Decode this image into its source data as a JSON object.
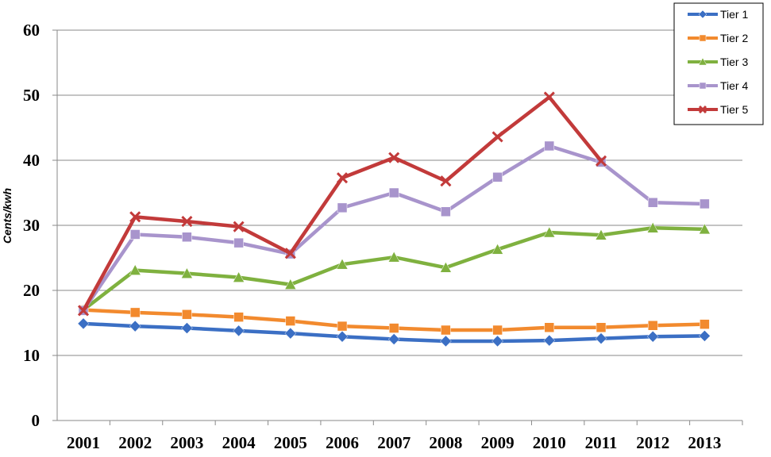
{
  "chart_data": {
    "type": "line",
    "title": "",
    "xlabel": "",
    "ylabel": "Cents/kwh",
    "ylim": [
      0,
      60
    ],
    "yticks": [
      0,
      10,
      20,
      30,
      40,
      50,
      60
    ],
    "grid": true,
    "legend_position": "top-right",
    "categories": [
      "2001",
      "2002",
      "2003",
      "2004",
      "2005",
      "2006",
      "2007",
      "2008",
      "2009",
      "2010",
      "2011",
      "2012",
      "2013"
    ],
    "series": [
      {
        "name": "Tier 1",
        "color": "#3b6fc4",
        "marker": "diamond",
        "values": [
          14.9,
          14.5,
          14.2,
          13.8,
          13.4,
          12.9,
          12.5,
          12.2,
          12.2,
          12.3,
          12.6,
          12.9,
          13.0
        ]
      },
      {
        "name": "Tier 2",
        "color": "#f28a2e",
        "marker": "square",
        "values": [
          17.0,
          16.6,
          16.3,
          15.9,
          15.3,
          14.5,
          14.2,
          13.9,
          13.9,
          14.3,
          14.3,
          14.6,
          14.8
        ]
      },
      {
        "name": "Tier 3",
        "color": "#7fb13f",
        "marker": "triangle",
        "values": [
          17.0,
          23.1,
          22.6,
          22.0,
          20.9,
          24.0,
          25.1,
          23.5,
          26.3,
          28.9,
          28.5,
          29.6,
          29.4
        ]
      },
      {
        "name": "Tier 4",
        "color": "#a894cc",
        "marker": "square",
        "values": [
          16.9,
          28.6,
          28.2,
          27.3,
          25.6,
          32.7,
          35.0,
          32.1,
          37.4,
          42.2,
          39.7,
          33.5,
          33.3
        ]
      },
      {
        "name": "Tier 5",
        "color": "#c23a3a",
        "marker": "x",
        "values": [
          16.9,
          31.3,
          30.6,
          29.8,
          25.7,
          37.3,
          40.4,
          36.8,
          43.6,
          49.7,
          39.9,
          null,
          null
        ]
      }
    ]
  }
}
